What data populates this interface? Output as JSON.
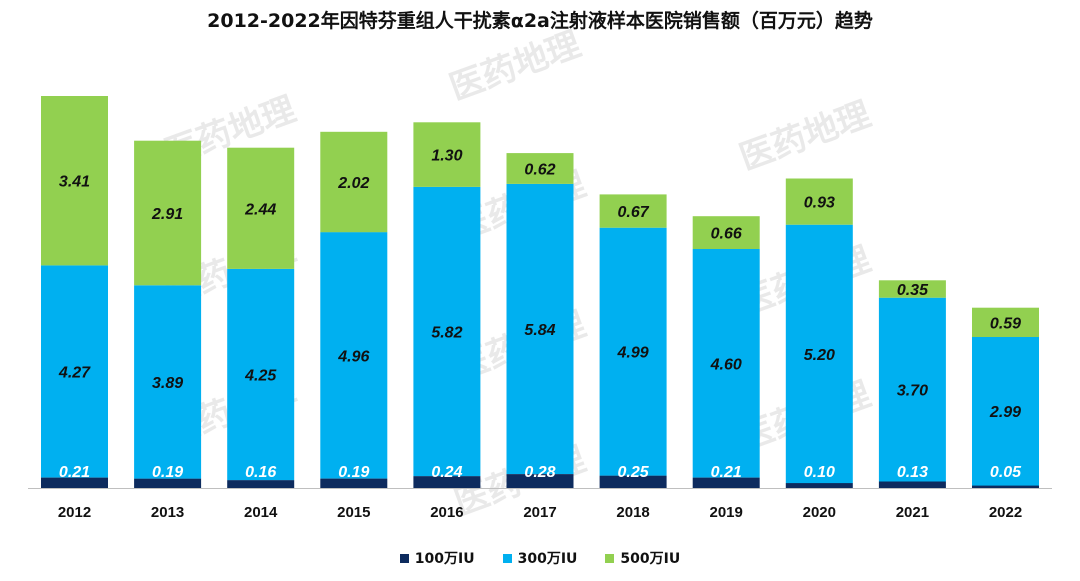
{
  "chart_data": {
    "type": "bar",
    "stacked": true,
    "title": "2012-2022年因特芬重组人干扰素α2a注射液样本医院销售额（百万元）趋势",
    "xlabel": "",
    "ylabel": "",
    "ylim": [
      0,
      8.2
    ],
    "grid": false,
    "legend_position": "bottom",
    "categories": [
      "2012",
      "2013",
      "2014",
      "2015",
      "2016",
      "2017",
      "2018",
      "2019",
      "2020",
      "2021",
      "2022"
    ],
    "series": [
      {
        "name": "100万IU",
        "color": "#0d2b5e",
        "label_color": "#ffffff",
        "values": [
          0.21,
          0.19,
          0.16,
          0.19,
          0.24,
          0.28,
          0.25,
          0.21,
          0.1,
          0.13,
          0.05
        ]
      },
      {
        "name": "300万IU",
        "color": "#00b0f0",
        "label_color": "#111111",
        "values": [
          4.27,
          3.89,
          4.25,
          4.96,
          5.82,
          5.84,
          4.99,
          4.6,
          5.2,
          3.7,
          2.99
        ]
      },
      {
        "name": "500万IU",
        "color": "#92d050",
        "label_color": "#111111",
        "values": [
          3.41,
          2.91,
          2.44,
          2.02,
          1.3,
          0.62,
          0.67,
          0.66,
          0.93,
          0.35,
          0.59
        ]
      }
    ],
    "watermark": "医药地理"
  }
}
